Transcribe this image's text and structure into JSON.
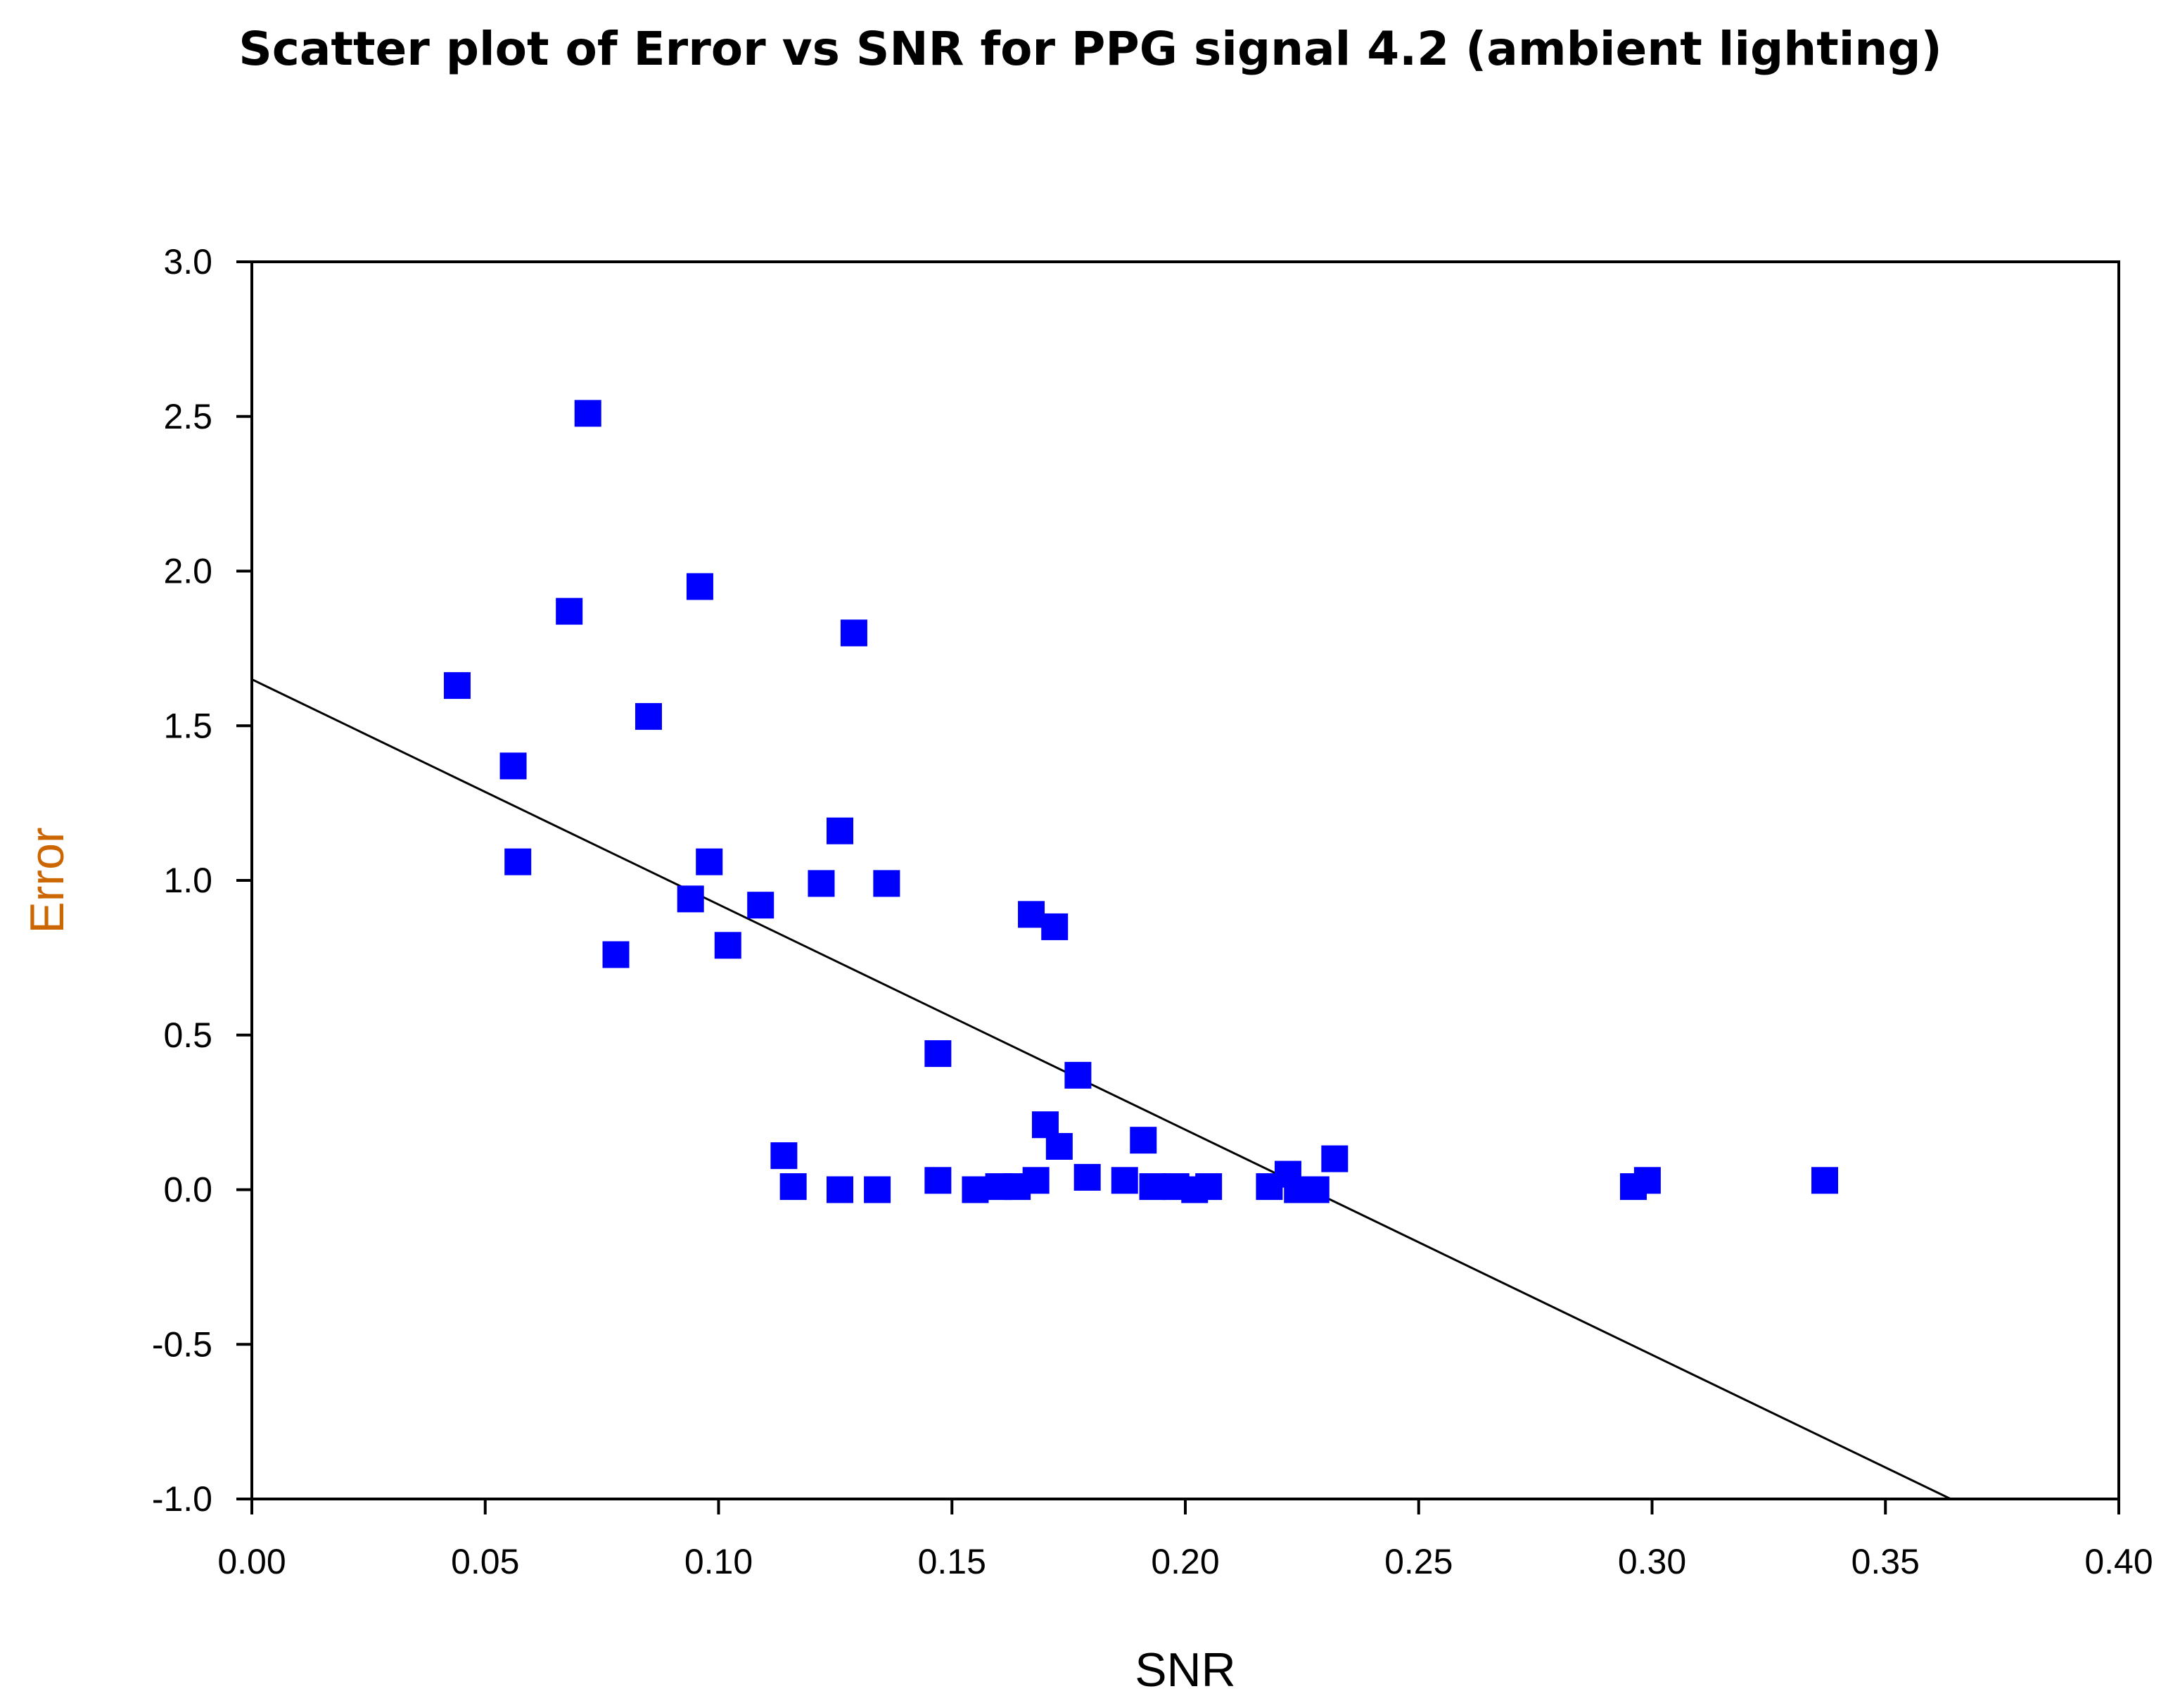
{
  "chart_data": {
    "type": "scatter",
    "title": "Scatter plot of  Error vs SNR for PPG signal 4.2 (ambient lighting)",
    "xlabel": "SNR",
    "ylabel": "Error",
    "xlim": [
      0.0,
      0.4
    ],
    "ylim": [
      -1.0,
      3.0
    ],
    "x_ticks": [
      "0.00",
      "0.05",
      "0.10",
      "0.15",
      "0.20",
      "0.25",
      "0.30",
      "0.35",
      "0.40"
    ],
    "x_tick_values": [
      0.0,
      0.05,
      0.1,
      0.15,
      0.2,
      0.25,
      0.3,
      0.35,
      0.4
    ],
    "y_ticks": [
      "3.0",
      "2.5",
      "2.0",
      "1.5",
      "1.0",
      "0.5",
      "0.0",
      "-0.5",
      "-1.0"
    ],
    "y_tick_values": [
      3.0,
      2.5,
      2.0,
      1.5,
      1.0,
      0.5,
      0.0,
      -0.5,
      -1.0
    ],
    "grid": false,
    "legend": "none",
    "colors": {
      "marker": "#0000ff",
      "trend_line": "#000000",
      "axis": "#000000",
      "axis_label": "#cc6600"
    },
    "series": [
      {
        "name": "Error vs SNR",
        "marker": "square",
        "points": [
          [
            0.072,
            2.51
          ],
          [
            0.096,
            1.95
          ],
          [
            0.068,
            1.87
          ],
          [
            0.129,
            1.8
          ],
          [
            0.044,
            1.63
          ],
          [
            0.085,
            1.53
          ],
          [
            0.056,
            1.37
          ],
          [
            0.057,
            1.06
          ],
          [
            0.098,
            1.06
          ],
          [
            0.126,
            1.16
          ],
          [
            0.122,
            0.99
          ],
          [
            0.136,
            0.99
          ],
          [
            0.094,
            0.94
          ],
          [
            0.109,
            0.92
          ],
          [
            0.102,
            0.79
          ],
          [
            0.078,
            0.76
          ],
          [
            0.167,
            0.89
          ],
          [
            0.172,
            0.85
          ],
          [
            0.147,
            0.44
          ],
          [
            0.177,
            0.37
          ],
          [
            0.17,
            0.21
          ],
          [
            0.173,
            0.14
          ],
          [
            0.191,
            0.16
          ],
          [
            0.114,
            0.11
          ],
          [
            0.232,
            0.1
          ],
          [
            0.222,
            0.05
          ],
          [
            0.299,
            0.03
          ],
          [
            0.296,
            0.01
          ],
          [
            0.337,
            0.03
          ],
          [
            0.147,
            0.03
          ],
          [
            0.179,
            0.04
          ],
          [
            0.168,
            0.03
          ],
          [
            0.116,
            0.01
          ],
          [
            0.126,
            0.0
          ],
          [
            0.134,
            0.0
          ],
          [
            0.155,
            0.0
          ],
          [
            0.16,
            0.01
          ],
          [
            0.164,
            0.01
          ],
          [
            0.187,
            0.03
          ],
          [
            0.193,
            0.01
          ],
          [
            0.198,
            0.01
          ],
          [
            0.202,
            0.0
          ],
          [
            0.205,
            0.01
          ],
          [
            0.218,
            0.01
          ],
          [
            0.224,
            0.0
          ],
          [
            0.228,
            0.0
          ]
        ]
      }
    ],
    "trend_line": {
      "type": "linear_fit",
      "points": [
        [
          0.0,
          1.65
        ],
        [
          0.364,
          -1.0
        ]
      ]
    }
  }
}
